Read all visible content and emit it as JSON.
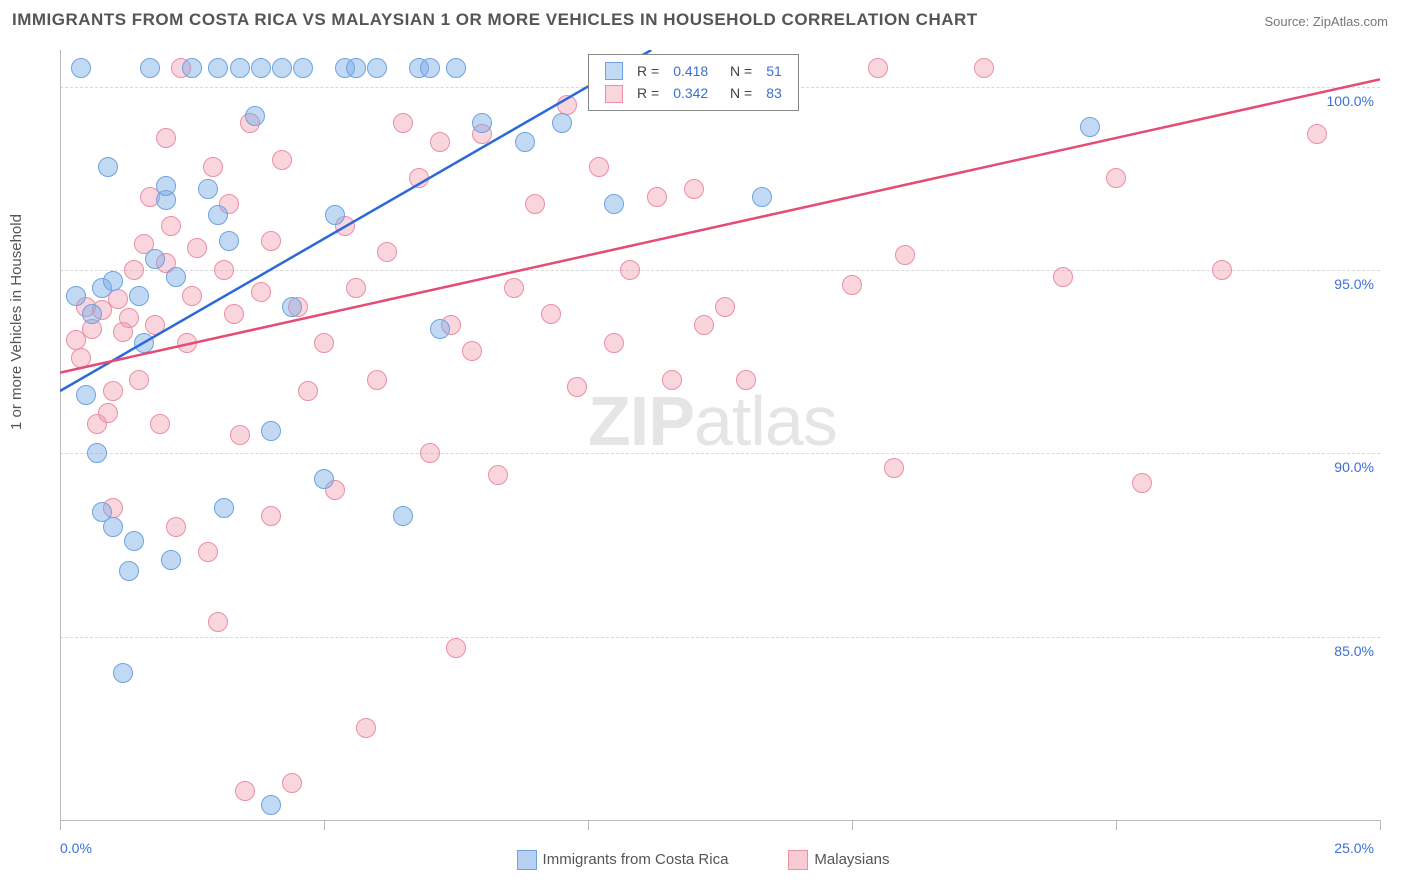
{
  "title": "IMMIGRANTS FROM COSTA RICA VS MALAYSIAN 1 OR MORE VEHICLES IN HOUSEHOLD CORRELATION CHART",
  "source_label": "Source: ZipAtlas.com",
  "ylabel": "1 or more Vehicles in Household",
  "watermark": {
    "bold": "ZIP",
    "light": "atlas"
  },
  "chart": {
    "type": "scatter",
    "xlim": [
      0,
      25
    ],
    "ylim": [
      80,
      101
    ],
    "background_color": "#ffffff",
    "grid_color": "#d8d8d8",
    "axis_color": "#bbbbbb",
    "ytick_values": [
      85,
      90,
      95,
      100
    ],
    "ytick_labels": [
      "85.0%",
      "90.0%",
      "95.0%",
      "100.0%"
    ],
    "xtick_values": [
      0,
      5,
      10,
      15,
      20,
      25
    ],
    "xtick_label_left": "0.0%",
    "xtick_label_right": "25.0%",
    "tick_label_color": "#3b6fd8",
    "marker_radius": 10,
    "series": [
      {
        "name": "Immigrants from Costa Rica",
        "fill": "rgba(120,170,230,0.45)",
        "stroke": "#6fa3df",
        "trend_color": "#2b68d8",
        "trend_width": 2.5,
        "R": "0.418",
        "N": "51",
        "trend": {
          "x1": 0,
          "y1": 91.7,
          "x2": 11.2,
          "y2": 101
        },
        "points": [
          [
            0.3,
            94.3
          ],
          [
            0.4,
            100.5
          ],
          [
            0.5,
            91.6
          ],
          [
            0.6,
            93.8
          ],
          [
            0.7,
            90.0
          ],
          [
            0.8,
            88.4
          ],
          [
            0.8,
            94.5
          ],
          [
            0.9,
            97.8
          ],
          [
            1.0,
            94.7
          ],
          [
            1.0,
            88.0
          ],
          [
            1.2,
            84.0
          ],
          [
            1.3,
            86.8
          ],
          [
            1.4,
            87.6
          ],
          [
            1.5,
            94.3
          ],
          [
            1.6,
            93.0
          ],
          [
            1.7,
            100.5
          ],
          [
            1.8,
            95.3
          ],
          [
            2.0,
            96.9
          ],
          [
            2.0,
            97.3
          ],
          [
            2.1,
            87.1
          ],
          [
            2.2,
            94.8
          ],
          [
            2.5,
            100.5
          ],
          [
            2.8,
            97.2
          ],
          [
            3.0,
            100.5
          ],
          [
            3.0,
            96.5
          ],
          [
            3.1,
            88.5
          ],
          [
            3.2,
            95.8
          ],
          [
            3.4,
            100.5
          ],
          [
            3.7,
            99.2
          ],
          [
            3.8,
            100.5
          ],
          [
            4.0,
            90.6
          ],
          [
            4.0,
            80.4
          ],
          [
            4.2,
            100.5
          ],
          [
            4.4,
            94.0
          ],
          [
            4.6,
            100.5
          ],
          [
            5.0,
            89.3
          ],
          [
            5.2,
            96.5
          ],
          [
            5.4,
            100.5
          ],
          [
            5.6,
            100.5
          ],
          [
            6.0,
            100.5
          ],
          [
            6.5,
            88.3
          ],
          [
            6.8,
            100.5
          ],
          [
            7.0,
            100.5
          ],
          [
            7.2,
            93.4
          ],
          [
            7.5,
            100.5
          ],
          [
            8.0,
            99.0
          ],
          [
            8.8,
            98.5
          ],
          [
            9.5,
            99.0
          ],
          [
            10.5,
            96.8
          ],
          [
            13.3,
            97.0
          ],
          [
            19.5,
            98.9
          ]
        ]
      },
      {
        "name": "Malaysians",
        "fill": "rgba(240,150,170,0.40)",
        "stroke": "#eb8fa3",
        "trend_color": "#e54b74",
        "trend_width": 2.5,
        "R": "0.342",
        "N": "83",
        "trend": {
          "x1": 0,
          "y1": 92.2,
          "x2": 25,
          "y2": 100.2
        },
        "points": [
          [
            0.3,
            93.1
          ],
          [
            0.4,
            92.6
          ],
          [
            0.5,
            94.0
          ],
          [
            0.6,
            93.4
          ],
          [
            0.7,
            90.8
          ],
          [
            0.8,
            93.9
          ],
          [
            0.9,
            91.1
          ],
          [
            1.0,
            91.7
          ],
          [
            1.0,
            88.5
          ],
          [
            1.1,
            94.2
          ],
          [
            1.2,
            93.3
          ],
          [
            1.3,
            93.7
          ],
          [
            1.4,
            95.0
          ],
          [
            1.5,
            92.0
          ],
          [
            1.6,
            95.7
          ],
          [
            1.7,
            97.0
          ],
          [
            1.8,
            93.5
          ],
          [
            1.9,
            90.8
          ],
          [
            2.0,
            95.2
          ],
          [
            2.0,
            98.6
          ],
          [
            2.1,
            96.2
          ],
          [
            2.2,
            88.0
          ],
          [
            2.3,
            100.5
          ],
          [
            2.4,
            93.0
          ],
          [
            2.5,
            94.3
          ],
          [
            2.6,
            95.6
          ],
          [
            2.8,
            87.3
          ],
          [
            2.9,
            97.8
          ],
          [
            3.0,
            85.4
          ],
          [
            3.1,
            95.0
          ],
          [
            3.2,
            96.8
          ],
          [
            3.3,
            93.8
          ],
          [
            3.4,
            90.5
          ],
          [
            3.5,
            80.8
          ],
          [
            3.6,
            99.0
          ],
          [
            3.8,
            94.4
          ],
          [
            4.0,
            95.8
          ],
          [
            4.0,
            88.3
          ],
          [
            4.2,
            98.0
          ],
          [
            4.4,
            81.0
          ],
          [
            4.5,
            94.0
          ],
          [
            4.7,
            91.7
          ],
          [
            5.0,
            93.0
          ],
          [
            5.2,
            89.0
          ],
          [
            5.4,
            96.2
          ],
          [
            5.6,
            94.5
          ],
          [
            5.8,
            82.5
          ],
          [
            6.0,
            92.0
          ],
          [
            6.2,
            95.5
          ],
          [
            6.5,
            99.0
          ],
          [
            6.8,
            97.5
          ],
          [
            7.0,
            90.0
          ],
          [
            7.2,
            98.5
          ],
          [
            7.4,
            93.5
          ],
          [
            7.5,
            84.7
          ],
          [
            7.8,
            92.8
          ],
          [
            8.0,
            98.7
          ],
          [
            8.3,
            89.4
          ],
          [
            8.6,
            94.5
          ],
          [
            9.0,
            96.8
          ],
          [
            9.3,
            93.8
          ],
          [
            9.6,
            99.5
          ],
          [
            9.8,
            91.8
          ],
          [
            10.2,
            97.8
          ],
          [
            10.5,
            93.0
          ],
          [
            10.8,
            95.0
          ],
          [
            11.3,
            97.0
          ],
          [
            11.6,
            92.0
          ],
          [
            12.0,
            97.2
          ],
          [
            12.2,
            93.5
          ],
          [
            12.6,
            94.0
          ],
          [
            13.0,
            92.0
          ],
          [
            13.5,
            100.5
          ],
          [
            15.0,
            94.6
          ],
          [
            15.5,
            100.5
          ],
          [
            16.0,
            95.4
          ],
          [
            15.8,
            89.6
          ],
          [
            17.5,
            100.5
          ],
          [
            19.0,
            94.8
          ],
          [
            20.0,
            97.5
          ],
          [
            20.5,
            89.2
          ],
          [
            22.0,
            95.0
          ],
          [
            23.8,
            98.7
          ]
        ]
      }
    ]
  },
  "stats_legend_labels": {
    "R": "R =",
    "N": "N ="
  },
  "bottom_legend": [
    {
      "label": "Immigrants from Costa Rica",
      "fill": "rgba(120,170,230,0.55)",
      "stroke": "#6fa3df"
    },
    {
      "label": "Malaysians",
      "fill": "rgba(240,150,170,0.50)",
      "stroke": "#eb8fa3"
    }
  ]
}
